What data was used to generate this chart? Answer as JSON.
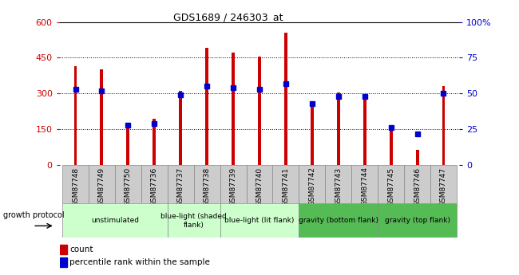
{
  "title": "GDS1689 / 246303_at",
  "samples": [
    "GSM87748",
    "GSM87749",
    "GSM87750",
    "GSM87736",
    "GSM87737",
    "GSM87738",
    "GSM87739",
    "GSM87740",
    "GSM87741",
    "GSM87742",
    "GSM87743",
    "GSM87744",
    "GSM87745",
    "GSM87746",
    "GSM87747"
  ],
  "counts": [
    415,
    400,
    165,
    195,
    310,
    490,
    470,
    455,
    555,
    245,
    305,
    295,
    145,
    65,
    330
  ],
  "percentiles": [
    53,
    52,
    28,
    29,
    49,
    55,
    54,
    53,
    57,
    43,
    48,
    48,
    26,
    22,
    50
  ],
  "ylim_left": [
    0,
    600
  ],
  "ylim_right": [
    0,
    100
  ],
  "yticks_left": [
    0,
    150,
    300,
    450,
    600
  ],
  "yticks_right": [
    0,
    25,
    50,
    75,
    100
  ],
  "groups": [
    {
      "label": "unstimulated",
      "indices": [
        0,
        1,
        2,
        3
      ],
      "color": "#ccffcc"
    },
    {
      "label": "blue-light (shaded\nflank)",
      "indices": [
        4,
        5
      ],
      "color": "#ccffcc"
    },
    {
      "label": "blue-light (lit flank)",
      "indices": [
        6,
        7,
        8
      ],
      "color": "#ccffcc"
    },
    {
      "label": "gravity (bottom flank)",
      "indices": [
        9,
        10,
        11
      ],
      "color": "#55bb55"
    },
    {
      "label": "gravity (top flank)",
      "indices": [
        12,
        13,
        14
      ],
      "color": "#55bb55"
    }
  ],
  "bar_color": "#cc0000",
  "dot_color": "#0000cc",
  "left_tick_color": "#cc0000",
  "right_tick_color": "#0000cc",
  "growth_label": "growth protocol",
  "legend_count": "count",
  "legend_percentile": "percentile rank within the sample",
  "bar_width": 0.12,
  "dot_size": 4
}
